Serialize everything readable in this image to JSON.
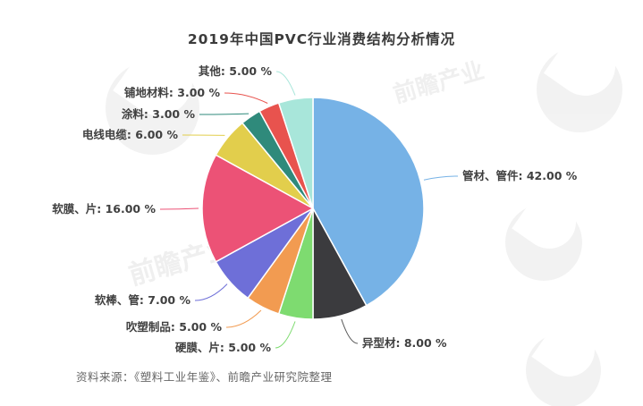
{
  "title": "2019年中国PVC行业消费结构分析情况",
  "source_note": "资料来源：《塑料工业年鉴》、前瞻产业研究院整理",
  "watermark": {
    "text_full": "前瞻产业研究院",
    "text_short": "前瞻产业"
  },
  "chart_data": {
    "type": "pie",
    "title": "2019年中国PVC行业消费结构分析情况",
    "unit": "%",
    "start_angle_deg": 0,
    "direction": "clockwise",
    "legend_position": "none",
    "categories": [
      "管材、管件",
      "异型材",
      "硬膜、片",
      "吹塑制品",
      "软棒、管",
      "软膜、片",
      "电线电缆",
      "涂料",
      "铺地材料",
      "其他"
    ],
    "values": [
      42.0,
      8.0,
      5.0,
      5.0,
      7.0,
      16.0,
      6.0,
      3.0,
      3.0,
      5.0
    ],
    "labels": [
      "管材、管件: 42.00 %",
      "异型材: 8.00 %",
      "硬膜、片: 5.00 %",
      "吹塑制品: 5.00 %",
      "软棒、管: 7.00 %",
      "软膜、片: 16.00 %",
      "电线电缆: 6.00 %",
      "涂料: 3.00 %",
      "铺地材料: 3.00 %",
      "其他: 5.00 %"
    ],
    "colors": [
      "#76B2E6",
      "#3B3B3E",
      "#7EDB70",
      "#F29B51",
      "#6E6FD8",
      "#EC5276",
      "#E2CE4C",
      "#2F8A7B",
      "#E8534E",
      "#A8E6DA"
    ]
  }
}
